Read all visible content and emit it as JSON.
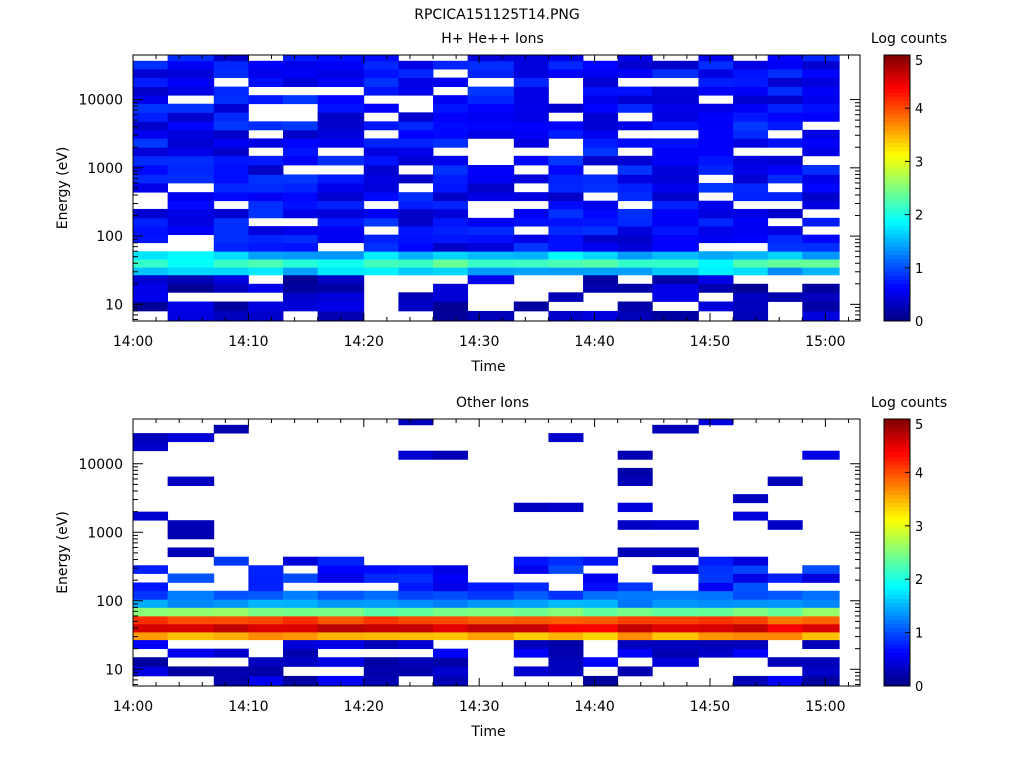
{
  "figure": {
    "title": "RPCICA151125T14.PNG"
  },
  "colors": {
    "colormap": [
      "#00007f",
      "#0000ff",
      "#007fff",
      "#00ffff",
      "#7fff7f",
      "#ffff00",
      "#ff7f00",
      "#ff0000",
      "#7f0000"
    ],
    "missing": "#ffffff"
  },
  "chart_data": [
    {
      "type": "heatmap",
      "title": "H+ He++ Ions",
      "xlabel": "Time",
      "ylabel": "Energy (eV)",
      "yscale": "log",
      "ylim": [
        5.7,
        45000
      ],
      "xlim": [
        "14:00",
        "15:03"
      ],
      "xticks": [
        "14:00",
        "14:10",
        "14:20",
        "14:30",
        "14:40",
        "14:50",
        "15:00"
      ],
      "yticks": [
        "10",
        "100",
        "1000",
        "10000"
      ],
      "colorbar": {
        "label": "Log counts",
        "range": [
          0,
          5
        ],
        "ticks": [
          "0",
          "1",
          "2",
          "3",
          "4",
          "5"
        ]
      },
      "time_bins": [
        "14:00",
        "14:03",
        "14:07",
        "14:10",
        "14:13",
        "14:16",
        "14:20",
        "14:23",
        "14:26",
        "14:29",
        "14:33",
        "14:36",
        "14:39",
        "14:42",
        "14:45",
        "14:49",
        "14:52",
        "14:55",
        "14:58"
      ],
      "energy_bins_eV": [
        5.7,
        8,
        11,
        15,
        20,
        27,
        35,
        46,
        60,
        80,
        105,
        140,
        185,
        250,
        330,
        440,
        600,
        800,
        1100,
        1500,
        2000,
        2700,
        3600,
        4800,
        6500,
        8700,
        11600,
        15500,
        21000,
        28000,
        37000,
        45000
      ],
      "colorbar_value_range_shown": [
        0,
        5
      ]
    },
    {
      "type": "heatmap",
      "title": "Other Ions",
      "xlabel": "Time",
      "ylabel": "Energy (eV)",
      "yscale": "log",
      "ylim": [
        5.7,
        45000
      ],
      "xlim": [
        "14:00",
        "15:03"
      ],
      "xticks": [
        "14:00",
        "14:10",
        "14:20",
        "14:30",
        "14:40",
        "14:50",
        "15:00"
      ],
      "yticks": [
        "10",
        "100",
        "1000",
        "10000"
      ],
      "colorbar": {
        "label": "Log counts",
        "range": [
          0,
          5
        ],
        "ticks": [
          "0",
          "1",
          "2",
          "3",
          "4",
          "5"
        ]
      },
      "time_bins": [
        "14:00",
        "14:03",
        "14:07",
        "14:10",
        "14:13",
        "14:16",
        "14:20",
        "14:23",
        "14:26",
        "14:29",
        "14:33",
        "14:36",
        "14:39",
        "14:42",
        "14:45",
        "14:49",
        "14:52",
        "14:55",
        "14:58"
      ],
      "energy_bins_eV": [
        5.7,
        8,
        11,
        15,
        20,
        27,
        35,
        46,
        60,
        80,
        105,
        140,
        185,
        250,
        330,
        440,
        600,
        800,
        1100,
        1500,
        2000,
        2700,
        3600,
        4800,
        6500,
        8700,
        11600,
        15500,
        21000,
        28000,
        37000,
        45000
      ]
    }
  ]
}
